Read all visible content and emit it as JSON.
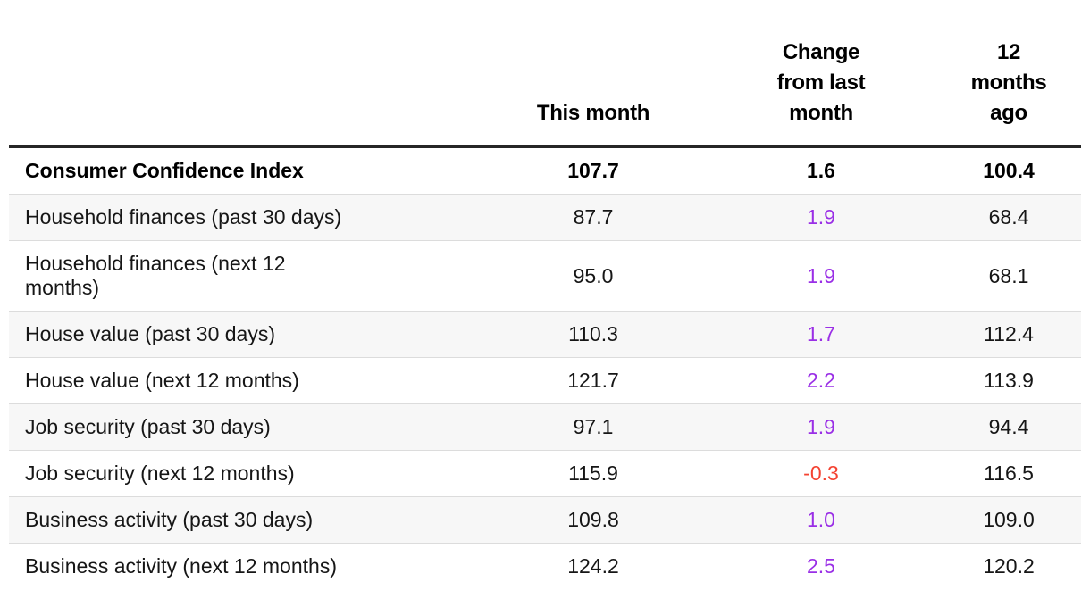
{
  "header": {
    "label": "",
    "this_month": "This month",
    "change_from_last_month": "Change\nfrom last\nmonth",
    "twelve_months_ago": "12\nmonths\nago"
  },
  "table": {
    "rows": [
      {
        "label": "Consumer Confidence Index",
        "this_month": "107.7",
        "change": "1.6",
        "year_ago": "100.4"
      },
      {
        "label": "Household finances (past 30 days)",
        "this_month": "87.7",
        "change": "1.9",
        "year_ago": "68.4"
      },
      {
        "label": "Household finances (next 12\nmonths)",
        "this_month": "95.0",
        "change": "1.9",
        "year_ago": "68.1"
      },
      {
        "label": "House value (past 30 days)",
        "this_month": "110.3",
        "change": "1.7",
        "year_ago": "112.4"
      },
      {
        "label": "House value (next 12 months)",
        "this_month": "121.7",
        "change": "2.2",
        "year_ago": "113.9"
      },
      {
        "label": "Job security (past 30 days)",
        "this_month": "97.1",
        "change": "1.9",
        "year_ago": "94.4"
      },
      {
        "label": "Job security (next 12 months)",
        "this_month": "115.9",
        "change": "-0.3",
        "year_ago": "116.5"
      },
      {
        "label": "Business activity (past 30 days)",
        "this_month": "109.8",
        "change": "1.0",
        "year_ago": "109.0"
      },
      {
        "label": "Business activity (next 12 months)",
        "this_month": "124.2",
        "change": "2.5",
        "year_ago": "120.2"
      }
    ]
  },
  "colors": {
    "positive_change": "#9a2fe6",
    "negative_change": "#f44332",
    "header_rule": "#262626",
    "alt_row_background": "#f7f7f7",
    "row_divider": "#dcdcdc",
    "text": "#161616"
  },
  "chart_data": {
    "type": "table",
    "title": "Consumer Confidence Index",
    "columns": [
      "",
      "This month",
      "Change from last month",
      "12 months ago"
    ],
    "rows": [
      {
        "label": "Consumer Confidence Index",
        "this_month": 107.7,
        "change_from_last_month": 1.6,
        "twelve_months_ago": 100.4
      },
      {
        "label": "Household finances (past 30 days)",
        "this_month": 87.7,
        "change_from_last_month": 1.9,
        "twelve_months_ago": 68.4
      },
      {
        "label": "Household finances (next 12 months)",
        "this_month": 95.0,
        "change_from_last_month": 1.9,
        "twelve_months_ago": 68.1
      },
      {
        "label": "House value (past 30 days)",
        "this_month": 110.3,
        "change_from_last_month": 1.7,
        "twelve_months_ago": 112.4
      },
      {
        "label": "House value (next 12 months)",
        "this_month": 121.7,
        "change_from_last_month": 2.2,
        "twelve_months_ago": 113.9
      },
      {
        "label": "Job security (past 30 days)",
        "this_month": 97.1,
        "change_from_last_month": 1.9,
        "twelve_months_ago": 94.4
      },
      {
        "label": "Job security (next 12 months)",
        "this_month": 115.9,
        "change_from_last_month": -0.3,
        "twelve_months_ago": 116.5
      },
      {
        "label": "Business activity (past 30 days)",
        "this_month": 109.8,
        "change_from_last_month": 1.0,
        "twelve_months_ago": 109.0
      },
      {
        "label": "Business activity (next 12 months)",
        "this_month": 124.2,
        "change_from_last_month": 2.5,
        "twelve_months_ago": 120.2
      }
    ]
  }
}
